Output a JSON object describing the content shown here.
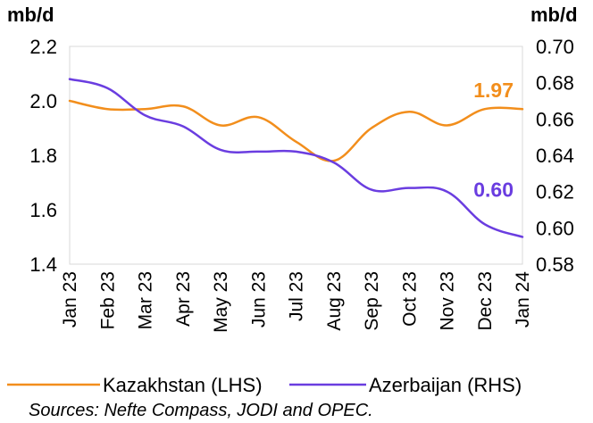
{
  "chart_data": {
    "type": "line",
    "title": "",
    "categories": [
      "Jan 23",
      "Feb 23",
      "Mar 23",
      "Apr 23",
      "May 23",
      "Jun 23",
      "Jul 23",
      "Aug 23",
      "Sep 23",
      "Oct 23",
      "Nov 23",
      "Dec 23",
      "Jan 24"
    ],
    "left_axis": {
      "unit_label": "mb/d",
      "ylim": [
        1.4,
        2.2
      ],
      "ticks": [
        "1.4",
        "1.6",
        "1.8",
        "2.0",
        "2.2"
      ]
    },
    "right_axis": {
      "unit_label": "mb/d",
      "ylim": [
        0.58,
        0.7
      ],
      "ticks": [
        "0.58",
        "0.60",
        "0.62",
        "0.64",
        "0.66",
        "0.68",
        "0.70"
      ]
    },
    "series": [
      {
        "name": "Kazakhstan (LHS)",
        "axis": "left",
        "color": "#F28E1C",
        "values": [
          2.0,
          1.97,
          1.97,
          1.98,
          1.91,
          1.94,
          1.85,
          1.78,
          1.9,
          1.96,
          1.91,
          1.97,
          1.97
        ],
        "end_label": "1.97"
      },
      {
        "name": "Azerbaijan (RHS)",
        "axis": "right",
        "color": "#6A3DE0",
        "values": [
          0.682,
          0.677,
          0.662,
          0.656,
          0.643,
          0.642,
          0.642,
          0.636,
          0.621,
          0.622,
          0.62,
          0.602,
          0.595
        ],
        "end_label": "0.60"
      }
    ]
  },
  "source": "Sources: Nefte Compass, JODI and OPEC."
}
